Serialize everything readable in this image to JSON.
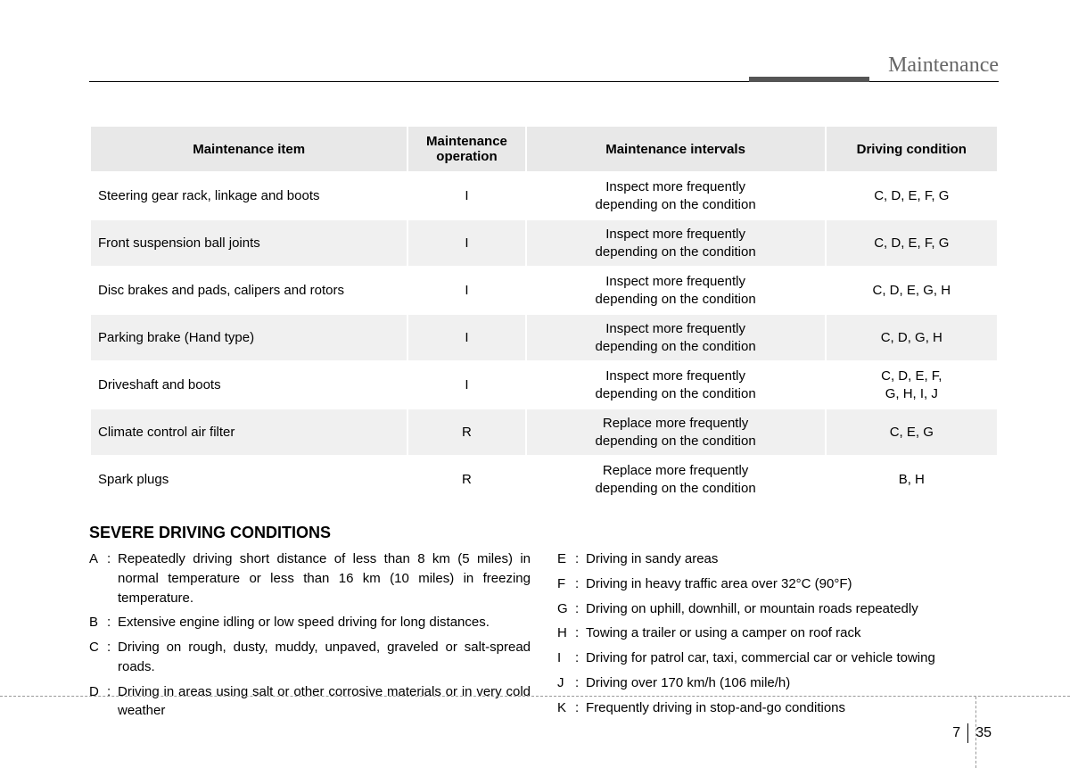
{
  "header": {
    "title": "Maintenance"
  },
  "table": {
    "columns": [
      "Maintenance item",
      "Maintenance operation",
      "Maintenance intervals",
      "Driving condition"
    ],
    "rows": [
      {
        "item": "Steering gear rack, linkage and boots",
        "op": "I",
        "interval": "Inspect more frequently depending on the condition",
        "cond": "C, D, E, F, G"
      },
      {
        "item": "Front suspension ball joints",
        "op": "I",
        "interval": "Inspect more frequently depending on the condition",
        "cond": "C, D, E, F, G"
      },
      {
        "item": "Disc brakes and pads, calipers and rotors",
        "op": "I",
        "interval": "Inspect more frequently depending on the condition",
        "cond": "C, D, E, G, H"
      },
      {
        "item": "Parking brake (Hand type)",
        "op": "I",
        "interval": "Inspect more frequently depending on the condition",
        "cond": "C, D, G, H"
      },
      {
        "item": "Driveshaft and boots",
        "op": "I",
        "interval": "Inspect more frequently depending on the condition",
        "cond": "C, D, E, F, G, H, I, J"
      },
      {
        "item": "Climate control air filter",
        "op": "R",
        "interval": "Replace more frequently depending on the condition",
        "cond": "C, E, G"
      },
      {
        "item": "Spark plugs",
        "op": "R",
        "interval": "Replace more frequently depending on the condition",
        "cond": "B, H"
      }
    ]
  },
  "section": {
    "heading": "SEVERE DRIVING CONDITIONS",
    "left": [
      {
        "letter": "A",
        "text": "Repeatedly driving short distance of less than 8 km (5 miles) in normal temperature or less than 16 km (10 miles) in freezing temperature."
      },
      {
        "letter": "B",
        "text": "Extensive engine idling or low speed driving for long distances."
      },
      {
        "letter": "C",
        "text": "Driving on rough, dusty, muddy, unpaved, graveled or salt-spread roads."
      },
      {
        "letter": "D",
        "text": "Driving in areas using salt or other corrosive materials or in very cold weather"
      }
    ],
    "right": [
      {
        "letter": "E",
        "text": "Driving in sandy areas"
      },
      {
        "letter": "F",
        "text": "Driving in heavy traffic area over 32°C (90°F)"
      },
      {
        "letter": "G",
        "text": "Driving on uphill, downhill, or mountain roads repeatedly"
      },
      {
        "letter": "H",
        "text": "Towing a trailer or using a camper on roof rack"
      },
      {
        "letter": "I",
        "text": "Driving for patrol car, taxi, commercial car or vehicle towing"
      },
      {
        "letter": "J",
        "text": "Driving over 170 km/h (106 mile/h)"
      },
      {
        "letter": "K",
        "text": "Frequently driving in stop-and-go conditions"
      }
    ]
  },
  "footer": {
    "chapter": "7",
    "page": "35"
  }
}
